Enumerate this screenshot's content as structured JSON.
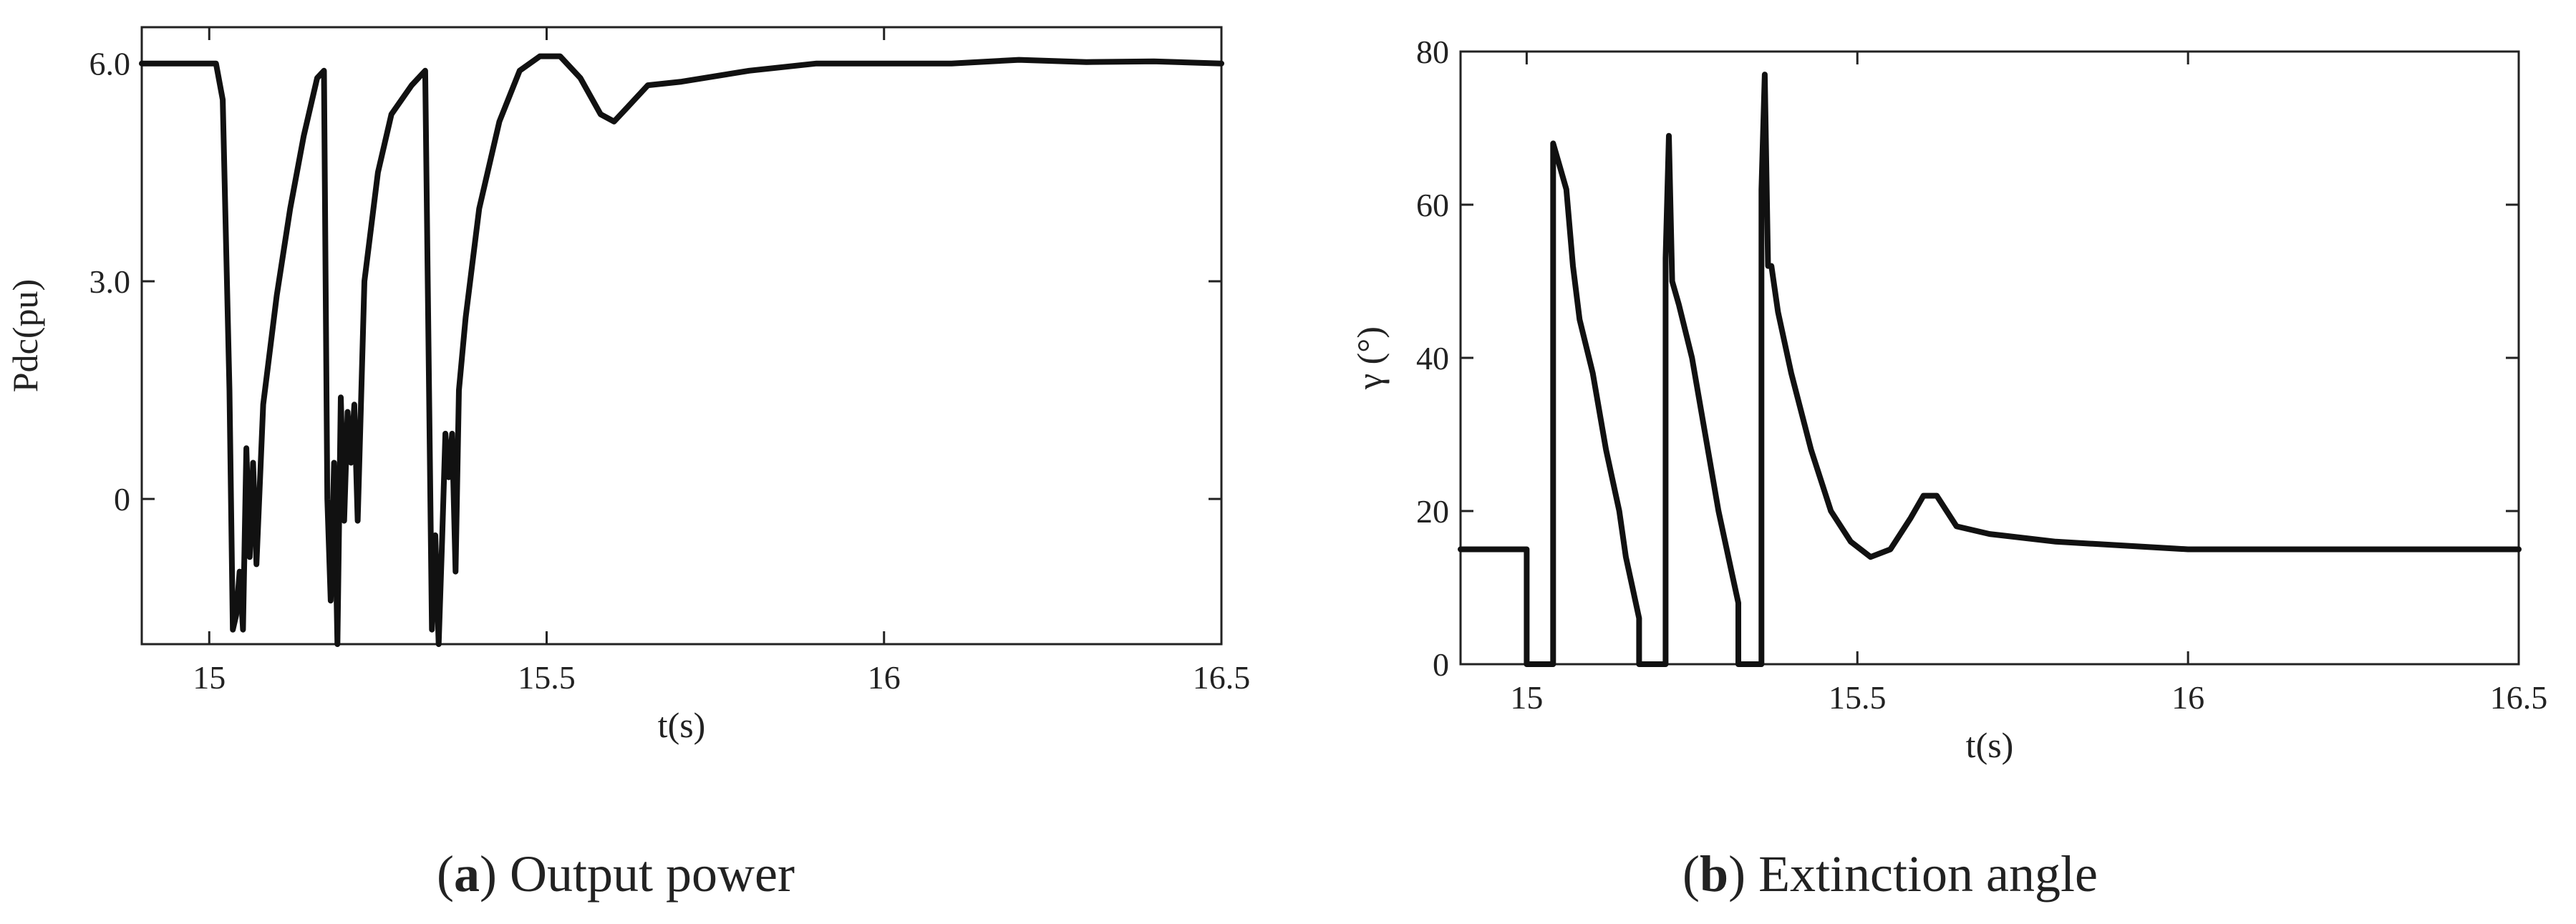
{
  "chart_data": [
    {
      "type": "line",
      "caption_letter": "a",
      "caption_text": "Output power",
      "xlabel": "t(s)",
      "ylabel": "Pdc(pu)",
      "xlim": [
        14.9,
        16.5
      ],
      "ylim": [
        -2.0,
        6.5
      ],
      "xticks": [
        15,
        15.5,
        16,
        16.5
      ],
      "xtick_labels": [
        "15",
        "15.5",
        "16",
        "16.5"
      ],
      "yticks": [
        0,
        3.0,
        6.0
      ],
      "ytick_labels": [
        "0",
        "3.0",
        "6.0"
      ],
      "grid": false,
      "series": [
        {
          "x": [
            14.9,
            15.01,
            15.02,
            15.03,
            15.035,
            15.04,
            15.045,
            15.05,
            15.055,
            15.06,
            15.065,
            15.07,
            15.08,
            15.1,
            15.12,
            15.14,
            15.16,
            15.17,
            15.175,
            15.18,
            15.185,
            15.19,
            15.195,
            15.2,
            15.205,
            15.21,
            15.215,
            15.22,
            15.23,
            15.25,
            15.27,
            15.3,
            15.32,
            15.33,
            15.335,
            15.34,
            15.345,
            15.35,
            15.355,
            15.36,
            15.365,
            15.37,
            15.38,
            15.4,
            15.43,
            15.46,
            15.49,
            15.52,
            15.55,
            15.58,
            15.6,
            15.62,
            15.65,
            15.7,
            15.8,
            15.9,
            16.0,
            16.1,
            16.2,
            16.3,
            16.4,
            16.5
          ],
          "y": [
            6.0,
            6.0,
            5.5,
            1.5,
            -1.8,
            -1.6,
            -1.0,
            -1.8,
            0.7,
            -0.8,
            0.5,
            -0.9,
            1.3,
            2.8,
            4.0,
            5.0,
            5.8,
            5.9,
            0.0,
            -1.4,
            0.5,
            -2.0,
            1.4,
            -0.3,
            1.2,
            0.5,
            1.3,
            -0.3,
            3.0,
            4.5,
            5.3,
            5.7,
            5.9,
            -1.8,
            -0.5,
            -2.0,
            -0.6,
            0.9,
            0.3,
            0.9,
            -1.0,
            1.5,
            2.5,
            4.0,
            5.2,
            5.9,
            6.1,
            6.1,
            5.8,
            5.3,
            5.2,
            5.4,
            5.7,
            5.75,
            5.9,
            6.0,
            6.0,
            6.0,
            6.05,
            6.02,
            6.03,
            6.0
          ]
        }
      ]
    },
    {
      "type": "line",
      "caption_letter": "b",
      "caption_text": "Extinction angle",
      "xlabel": "t(s)",
      "ylabel": "γ (°)",
      "xlim": [
        14.9,
        16.5
      ],
      "ylim": [
        0,
        80
      ],
      "xticks": [
        15,
        15.5,
        16,
        16.5
      ],
      "xtick_labels": [
        "15",
        "15.5",
        "16",
        "16.5"
      ],
      "yticks": [
        0,
        20,
        40,
        60,
        80
      ],
      "ytick_labels": [
        "0",
        "20",
        "40",
        "60",
        "80"
      ],
      "grid": false,
      "series": [
        {
          "x": [
            14.9,
            14.99,
            15.0,
            15.0,
            15.04,
            15.04,
            15.05,
            15.06,
            15.07,
            15.08,
            15.1,
            15.12,
            15.14,
            15.15,
            15.16,
            15.17,
            15.17,
            15.21,
            15.21,
            15.215,
            15.22,
            15.23,
            15.25,
            15.27,
            15.29,
            15.31,
            15.32,
            15.32,
            15.355,
            15.355,
            15.36,
            15.365,
            15.37,
            15.38,
            15.4,
            15.43,
            15.46,
            15.49,
            15.52,
            15.55,
            15.58,
            15.6,
            15.62,
            15.65,
            15.7,
            15.8,
            15.9,
            16.0,
            16.1,
            16.2,
            16.3,
            16.4,
            16.5
          ],
          "y": [
            15,
            15,
            15,
            0,
            0,
            68,
            65,
            62,
            52,
            45,
            38,
            28,
            20,
            14,
            10,
            6,
            0,
            0,
            53,
            69,
            50,
            47,
            40,
            30,
            20,
            12,
            8,
            0,
            0,
            62,
            77,
            52,
            52,
            46,
            38,
            28,
            20,
            16,
            14,
            15,
            19,
            22,
            22,
            18,
            17,
            16,
            15.5,
            15,
            15,
            15,
            15,
            15,
            15
          ]
        }
      ]
    }
  ]
}
